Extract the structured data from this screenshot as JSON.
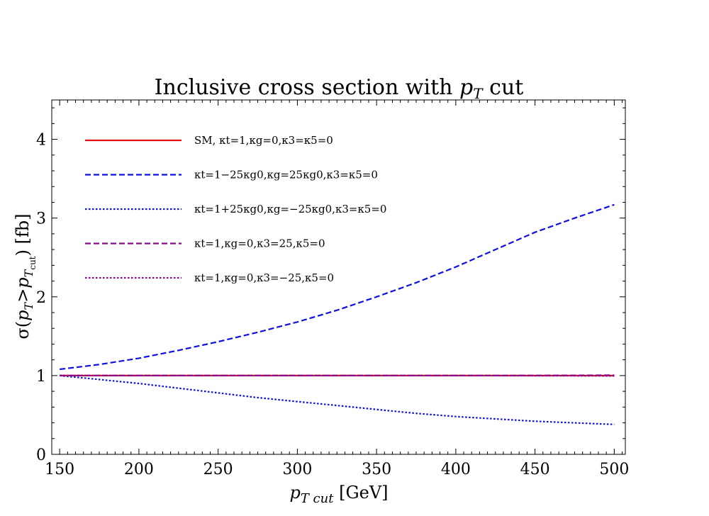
{
  "chart_data": {
    "type": "line",
    "title": "Inclusive cross section with",
    "title_var": "p",
    "title_sub": "T",
    "title_suffix": " cut",
    "xlabel": {
      "var": "p",
      "sub": "T cut",
      "unit": " [GeV]"
    },
    "ylabel": {
      "prefix": "σ(",
      "v1": "p",
      "s1": "T",
      "gt": ">",
      "v2": "p",
      "s2": "T",
      "s2sub": "cut",
      "suffix": ") [fb]"
    },
    "xlim": [
      145,
      507
    ],
    "ylim": [
      0,
      4.5
    ],
    "xticks": [
      150,
      200,
      250,
      300,
      350,
      400,
      450,
      500
    ],
    "xtick_labels": [
      "150",
      "200",
      "250",
      "300",
      "350",
      "400",
      "450",
      "500"
    ],
    "yticks": [
      0,
      1,
      2,
      3,
      4
    ],
    "ytick_labels": [
      "0",
      "1",
      "2",
      "3",
      "4"
    ],
    "x": [
      150,
      175,
      200,
      225,
      250,
      275,
      300,
      325,
      350,
      375,
      400,
      425,
      450,
      475,
      500
    ],
    "series": [
      {
        "name": "SM",
        "legend": "SM, κt=1,κg=0,κ3=κ5=0",
        "color": "#e01010",
        "style": "solid",
        "values": [
          1,
          1,
          1,
          1,
          1,
          1,
          1,
          1,
          1,
          1,
          1,
          1,
          1,
          1,
          1
        ]
      },
      {
        "name": "kt=1-25kg0",
        "legend": "κt=1−25κg0,κg=25κg0,κ3=κ5=0",
        "color": "#1010e0",
        "style": "dashed",
        "values": [
          1.08,
          1.14,
          1.22,
          1.32,
          1.43,
          1.55,
          1.68,
          1.83,
          2.0,
          2.18,
          2.38,
          2.6,
          2.82,
          3.0,
          3.17
        ]
      },
      {
        "name": "kt=1+25kg0",
        "legend": "κt=1+25κg0,κg=−25κg0,κ3=κ5=0",
        "color": "#1010e0",
        "style": "dotted",
        "values": [
          1.0,
          0.95,
          0.9,
          0.84,
          0.78,
          0.72,
          0.67,
          0.62,
          0.57,
          0.52,
          0.48,
          0.45,
          0.42,
          0.4,
          0.38
        ]
      },
      {
        "name": "k3=25",
        "legend": "κt=1,κg=0,κ3=25,κ5=0",
        "color": "#8b0a8b",
        "style": "dashed",
        "values": [
          1,
          1,
          1,
          1,
          1,
          1,
          1,
          1,
          1,
          1,
          1,
          1,
          1.002,
          1.003,
          1.005
        ]
      },
      {
        "name": "k3=-25",
        "legend": "κt=1,κg=0,κ3=−25,κ5=0",
        "color": "#8b0a8b",
        "style": "dotted",
        "values": [
          1,
          1,
          1,
          1,
          1,
          1,
          1,
          1,
          1,
          1,
          1,
          1,
          0.998,
          0.997,
          0.995
        ]
      }
    ]
  }
}
